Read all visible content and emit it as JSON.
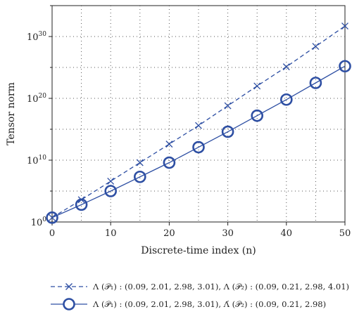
{
  "chart_data": {
    "type": "line",
    "xlabel": "Discrete-time index (n)",
    "ylabel": "Tensor norm",
    "xlim": [
      0,
      50
    ],
    "ylim_exponent": [
      0,
      35
    ],
    "y_scale": "log",
    "x_ticks": [
      0,
      10,
      20,
      30,
      40,
      50
    ],
    "y_ticks": [
      {
        "base": "10",
        "exp": "0",
        "value_exponent": 0
      },
      {
        "base": "10",
        "exp": "10",
        "value_exponent": 10
      },
      {
        "base": "10",
        "exp": "20",
        "value_exponent": 20
      },
      {
        "base": "10",
        "exp": "30",
        "value_exponent": 30
      }
    ],
    "grid": true,
    "legend_position": "bottom",
    "series": [
      {
        "label": "Λ (𝒫₁) : (0.09, 2.01, 2.98, 3.01), Λ (𝒫₂) : (0.09, 0.21, 2.98, 4.01)",
        "marker": "x",
        "line_style": "dashed",
        "color": "#2e4fa3",
        "x": [
          0,
          5,
          10,
          15,
          20,
          25,
          30,
          35,
          40,
          45,
          50
        ],
        "y_exponent": [
          0.7,
          3.6,
          6.6,
          9.6,
          12.6,
          15.6,
          18.8,
          22.0,
          25.1,
          28.4,
          31.7
        ]
      },
      {
        "label": "Λ (𝒫₁) : (0.09, 2.01, 2.98, 3.01), Λ́ (𝒫₂) : (0.09, 0.21, 2.98)",
        "marker": "o",
        "line_style": "solid",
        "color": "#2e4fa3",
        "x": [
          0,
          5,
          10,
          15,
          20,
          25,
          30,
          35,
          40,
          45,
          50
        ],
        "y_exponent": [
          0.7,
          2.8,
          5.0,
          7.3,
          9.6,
          12.1,
          14.6,
          17.2,
          19.8,
          22.5,
          25.2
        ]
      }
    ]
  }
}
